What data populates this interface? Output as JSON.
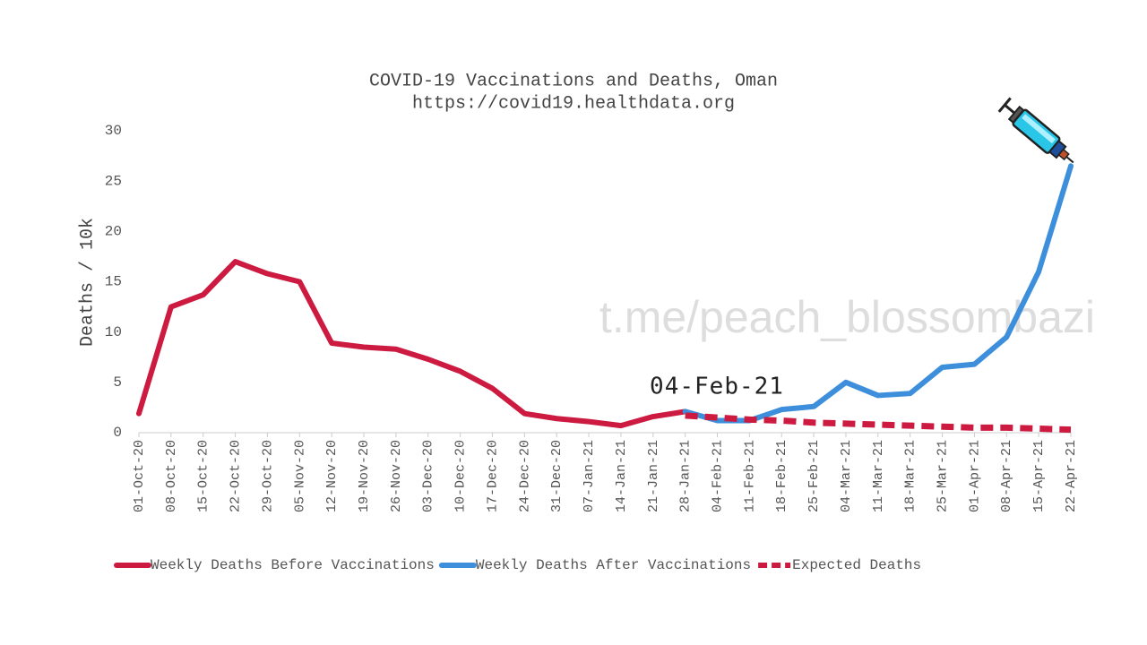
{
  "chart_data": {
    "type": "line",
    "title": "COVID-19 Vaccinations and Deaths, Oman",
    "subtitle": "https://covid19.healthdata.org",
    "y_label": "Deaths / 10k",
    "annotation": "04-Feb-21",
    "watermark": "t.me/peach_blossombazi",
    "categories": [
      "01-Oct-20",
      "08-Oct-20",
      "15-Oct-20",
      "22-Oct-20",
      "29-Oct-20",
      "05-Nov-20",
      "12-Nov-20",
      "19-Nov-20",
      "26-Nov-20",
      "03-Dec-20",
      "10-Dec-20",
      "17-Dec-20",
      "24-Dec-20",
      "31-Dec-20",
      "07-Jan-21",
      "14-Jan-21",
      "21-Jan-21",
      "28-Jan-21",
      "04-Feb-21",
      "11-Feb-21",
      "18-Feb-21",
      "25-Feb-21",
      "04-Mar-21",
      "11-Mar-21",
      "18-Mar-21",
      "25-Mar-21",
      "01-Apr-21",
      "08-Apr-21",
      "15-Apr-21",
      "22-Apr-21"
    ],
    "series": [
      {
        "name": "Weekly Deaths Before Vaccinations",
        "color": "#cc1a40",
        "dashed": false,
        "values": [
          1.9,
          12.5,
          13.7,
          17.0,
          15.8,
          15.0,
          8.9,
          8.5,
          8.3,
          7.3,
          6.1,
          4.4,
          1.9,
          1.4,
          1.1,
          0.7,
          1.6,
          2.1,
          null,
          null,
          null,
          null,
          null,
          null,
          null,
          null,
          null,
          null,
          null,
          null
        ]
      },
      {
        "name": "Weekly Deaths After Vaccinations",
        "color": "#3d8fdc",
        "dashed": false,
        "values": [
          null,
          null,
          null,
          null,
          null,
          null,
          null,
          null,
          null,
          null,
          null,
          null,
          null,
          null,
          null,
          null,
          null,
          2.1,
          1.2,
          1.2,
          2.3,
          2.6,
          5.0,
          3.7,
          3.9,
          6.5,
          6.8,
          9.5,
          16.0,
          26.5
        ]
      },
      {
        "name": "Expected Deaths",
        "color": "#cc1a40",
        "dashed": true,
        "values": [
          null,
          null,
          null,
          null,
          null,
          null,
          null,
          null,
          null,
          null,
          null,
          null,
          null,
          null,
          null,
          null,
          null,
          1.7,
          1.5,
          1.3,
          1.2,
          1.0,
          0.9,
          0.8,
          0.7,
          0.6,
          0.5,
          0.5,
          0.4,
          0.3
        ]
      }
    ],
    "ylim": [
      0,
      30
    ],
    "yticks": [
      0,
      5,
      10,
      15,
      20,
      25,
      30
    ],
    "grid": false
  }
}
